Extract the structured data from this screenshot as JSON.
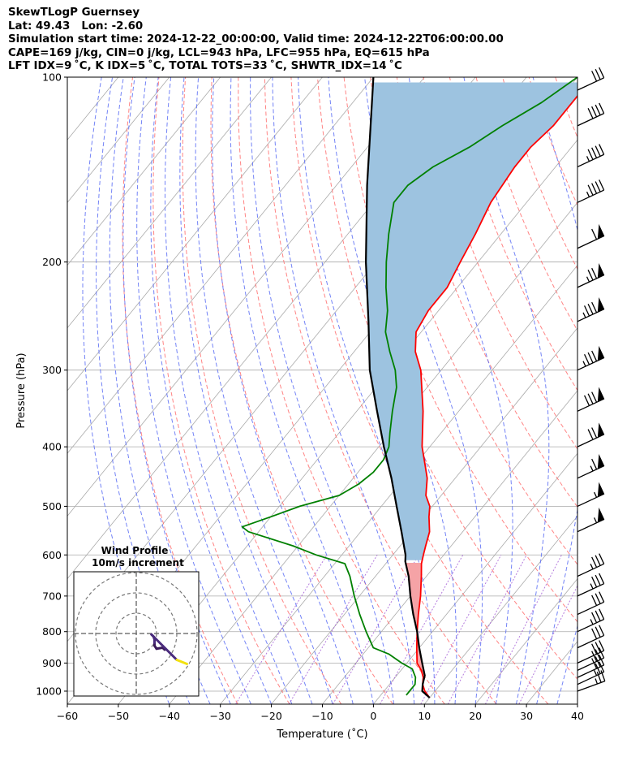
{
  "header": {
    "line1": "SkewTLogP Guernsey",
    "line2": "Lat: 49.43   Lon: -2.60",
    "line3": "Simulation start time: 2024-12-22_00:00:00, Valid time: 2024-12-22T06:00:00.00",
    "line4": "CAPE=169 j/kg, CIN=0 j/kg, LCL=943 hPa, LFC=955 hPa, EQ=615 hPa",
    "line5": "LFT IDX=9 ˚C, K IDX=5 ˚C, TOTAL TOTS=33 ˚C, SHWTR_IDX=14 ˚C"
  },
  "chart_data": {
    "type": "line",
    "subtype": "skew-T log-P diagram",
    "xlabel": "Temperature (˚C)",
    "ylabel": "Pressure (hPa)",
    "xlim": [
      -60,
      40
    ],
    "ylim": [
      1050,
      100
    ],
    "y_scale": "log",
    "x_ticks": [
      -60,
      -50,
      -40,
      -30,
      -20,
      -10,
      0,
      10,
      20,
      30,
      40
    ],
    "x_tick_labels": [
      "−60",
      "−50",
      "−40",
      "−30",
      "−20",
      "−10",
      "0",
      "10",
      "20",
      "30",
      "40"
    ],
    "y_ticks": [
      1000,
      900,
      800,
      700,
      600,
      500,
      400,
      300,
      200,
      100
    ],
    "y_tick_labels": [
      "1000",
      "900",
      "800",
      "700",
      "600",
      "500",
      "400",
      "300",
      "200",
      "100"
    ],
    "grid": true,
    "series": [
      {
        "role": "temperature",
        "color": "#ff0000",
        "points": [
          [
            1025,
            10
          ],
          [
            1000,
            8
          ],
          [
            975,
            6.5
          ],
          [
            950,
            5.5
          ],
          [
            925,
            4
          ],
          [
            900,
            2
          ],
          [
            850,
            -0.5
          ],
          [
            800,
            -3
          ],
          [
            750,
            -5.5
          ],
          [
            700,
            -8
          ],
          [
            650,
            -11
          ],
          [
            620,
            -13
          ],
          [
            600,
            -14
          ],
          [
            580,
            -15
          ],
          [
            550,
            -16.5
          ],
          [
            520,
            -19
          ],
          [
            500,
            -20.5
          ],
          [
            480,
            -23
          ],
          [
            450,
            -25.5
          ],
          [
            420,
            -29
          ],
          [
            400,
            -31.5
          ],
          [
            350,
            -37
          ],
          [
            300,
            -44
          ],
          [
            280,
            -48
          ],
          [
            260,
            -51
          ],
          [
            240,
            -52
          ],
          [
            220,
            -52
          ],
          [
            200,
            -53.5
          ],
          [
            180,
            -55
          ],
          [
            160,
            -57
          ],
          [
            140,
            -58
          ],
          [
            130,
            -58
          ],
          [
            120,
            -57
          ],
          [
            110,
            -57
          ],
          [
            100,
            -57
          ]
        ]
      },
      {
        "role": "dewpoint",
        "color": "#008000",
        "points": [
          [
            1015,
            5
          ],
          [
            1000,
            5
          ],
          [
            975,
            5
          ],
          [
            950,
            4
          ],
          [
            920,
            2
          ],
          [
            900,
            -1
          ],
          [
            870,
            -5
          ],
          [
            850,
            -9
          ],
          [
            800,
            -13
          ],
          [
            750,
            -17
          ],
          [
            700,
            -21
          ],
          [
            650,
            -25
          ],
          [
            620,
            -28
          ],
          [
            600,
            -35
          ],
          [
            580,
            -41
          ],
          [
            550,
            -52
          ],
          [
            540,
            -54
          ],
          [
            520,
            -50
          ],
          [
            500,
            -46
          ],
          [
            480,
            -40
          ],
          [
            460,
            -38
          ],
          [
            440,
            -37
          ],
          [
            420,
            -37
          ],
          [
            400,
            -38
          ],
          [
            380,
            -40
          ],
          [
            350,
            -43
          ],
          [
            320,
            -46
          ],
          [
            300,
            -49
          ],
          [
            280,
            -53
          ],
          [
            260,
            -57
          ],
          [
            240,
            -60
          ],
          [
            220,
            -64
          ],
          [
            200,
            -68
          ],
          [
            180,
            -72
          ],
          [
            160,
            -76
          ],
          [
            150,
            -76
          ],
          [
            140,
            -74
          ],
          [
            130,
            -70
          ],
          [
            120,
            -67
          ],
          [
            110,
            -63
          ],
          [
            100,
            -60
          ]
        ]
      },
      {
        "role": "parcel profile",
        "color": "#000000",
        "points": [
          [
            1025,
            10
          ],
          [
            1000,
            7.5
          ],
          [
            975,
            6.5
          ],
          [
            943,
            5.5
          ],
          [
            900,
            3
          ],
          [
            850,
            0
          ],
          [
            800,
            -3
          ],
          [
            750,
            -6.5
          ],
          [
            700,
            -10
          ],
          [
            650,
            -13.5
          ],
          [
            615,
            -16.5
          ],
          [
            600,
            -17.5
          ],
          [
            550,
            -22
          ],
          [
            500,
            -27
          ],
          [
            450,
            -32.5
          ],
          [
            400,
            -39
          ],
          [
            350,
            -46
          ],
          [
            300,
            -54
          ],
          [
            250,
            -62
          ],
          [
            200,
            -72
          ],
          [
            150,
            -84
          ],
          [
            100,
            -100
          ]
        ]
      }
    ],
    "shading": {
      "cape_color": "#9dc3e0",
      "cin_color": "#f5a3a6"
    },
    "background_lines": {
      "isotherms_color": "#aaaaaa",
      "dry_adiabats_color": "#ff6f6f",
      "moist_adiabats_color": "#5a6df5",
      "mixing_ratio_color": "#a35bd6"
    },
    "wind_barbs": [
      {
        "pressure": 1000,
        "speed_kt": 25,
        "direction_deg": 290
      },
      {
        "pressure": 975,
        "speed_kt": 25,
        "direction_deg": 295
      },
      {
        "pressure": 950,
        "speed_kt": 30,
        "direction_deg": 295
      },
      {
        "pressure": 925,
        "speed_kt": 30,
        "direction_deg": 295
      },
      {
        "pressure": 900,
        "speed_kt": 30,
        "direction_deg": 295
      },
      {
        "pressure": 850,
        "speed_kt": 30,
        "direction_deg": 295
      },
      {
        "pressure": 800,
        "speed_kt": 35,
        "direction_deg": 295
      },
      {
        "pressure": 750,
        "speed_kt": 30,
        "direction_deg": 295
      },
      {
        "pressure": 700,
        "speed_kt": 35,
        "direction_deg": 295
      },
      {
        "pressure": 650,
        "speed_kt": 35,
        "direction_deg": 295
      },
      {
        "pressure": 550,
        "speed_kt": 55,
        "direction_deg": 295
      },
      {
        "pressure": 500,
        "speed_kt": 55,
        "direction_deg": 295
      },
      {
        "pressure": 450,
        "speed_kt": 65,
        "direction_deg": 295
      },
      {
        "pressure": 400,
        "speed_kt": 70,
        "direction_deg": 295
      },
      {
        "pressure": 350,
        "speed_kt": 80,
        "direction_deg": 295
      },
      {
        "pressure": 300,
        "speed_kt": 85,
        "direction_deg": 295
      },
      {
        "pressure": 250,
        "speed_kt": 85,
        "direction_deg": 295
      },
      {
        "pressure": 220,
        "speed_kt": 75,
        "direction_deg": 295
      },
      {
        "pressure": 190,
        "speed_kt": 60,
        "direction_deg": 295
      },
      {
        "pressure": 160,
        "speed_kt": 45,
        "direction_deg": 295
      },
      {
        "pressure": 140,
        "speed_kt": 45,
        "direction_deg": 295
      },
      {
        "pressure": 120,
        "speed_kt": 40,
        "direction_deg": 295
      },
      {
        "pressure": 105,
        "speed_kt": 30,
        "direction_deg": 295
      }
    ],
    "hodograph": {
      "title_line1": "Wind Profile",
      "title_line2": "10m/s increment",
      "ring_increments": [
        10,
        20,
        30
      ],
      "trace_u_v": [
        [
          14,
          -8
        ],
        [
          13,
          -7
        ],
        [
          10,
          -7.5
        ],
        [
          9,
          -6
        ],
        [
          9,
          -4.5
        ],
        [
          9,
          -3
        ],
        [
          8.5,
          -1.5
        ],
        [
          8,
          -1
        ],
        [
          7.5,
          -0.5
        ],
        [
          20,
          -13
        ],
        [
          25,
          -15
        ]
      ],
      "trace_colors": [
        "#3b1a5a",
        "#4a2b7d",
        "#f2e10f"
      ]
    }
  }
}
